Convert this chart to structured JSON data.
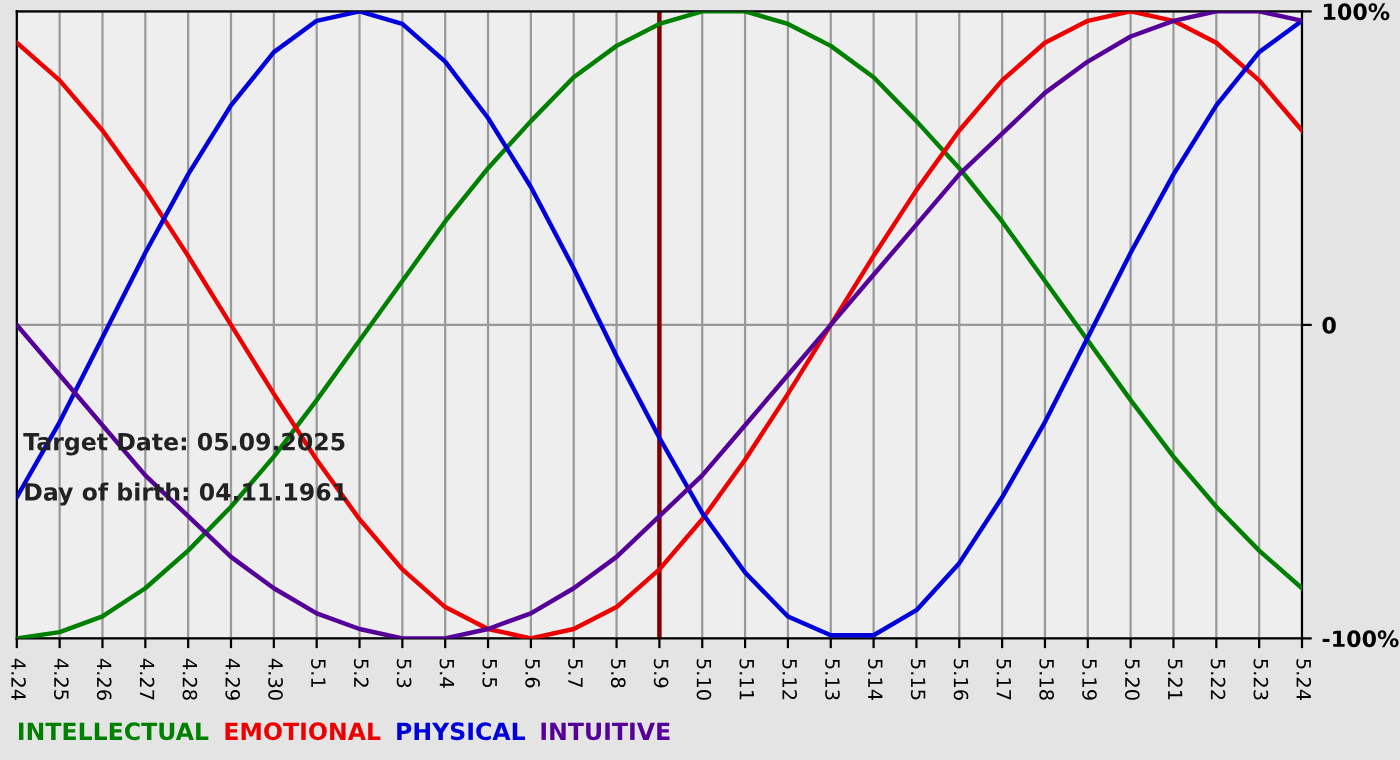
{
  "chart_data": {
    "type": "line",
    "categories": [
      "4.24",
      "4.25",
      "4.26",
      "4.27",
      "4.28",
      "4.29",
      "4.30",
      "5.1",
      "5.2",
      "5.3",
      "5.4",
      "5.5",
      "5.6",
      "5.7",
      "5.8",
      "5.9",
      "5.10",
      "5.11",
      "5.12",
      "5.13",
      "5.14",
      "5.15",
      "5.16",
      "5.17",
      "5.18",
      "5.19",
      "5.20",
      "5.21",
      "5.22",
      "5.23",
      "5.24"
    ],
    "series": [
      {
        "name": "INTELLECTUAL",
        "color": "#008000",
        "values": [
          -100,
          -98,
          -93,
          -84,
          -72,
          -58,
          -42,
          -24,
          -5,
          14,
          33,
          50,
          65,
          79,
          89,
          96,
          100,
          100,
          96,
          89,
          79,
          65,
          50,
          33,
          14,
          -5,
          -24,
          -42,
          -58,
          -72,
          -84
        ]
      },
      {
        "name": "EMOTIONAL",
        "color": "#ee0000",
        "values": [
          90,
          78,
          62,
          43,
          22,
          0,
          -22,
          -43,
          -62,
          -78,
          -90,
          -97,
          -100,
          -97,
          -90,
          -78,
          -62,
          -43,
          -22,
          0,
          22,
          43,
          62,
          78,
          90,
          97,
          100,
          97,
          90,
          78,
          62
        ]
      },
      {
        "name": "PHYSICAL",
        "color": "#0000dd",
        "values": [
          -55,
          -31,
          -4,
          23,
          48,
          70,
          87,
          97,
          100,
          96,
          84,
          66,
          44,
          18,
          -10,
          -36,
          -60,
          -79,
          -93,
          -99,
          -99,
          -91,
          -76,
          -55,
          -31,
          -4,
          23,
          48,
          70,
          87,
          97
        ]
      },
      {
        "name": "INTUITIVE",
        "color": "#550099",
        "values": [
          0,
          -16,
          -32,
          -48,
          -61,
          -74,
          -84,
          -92,
          -97,
          -100,
          -100,
          -97,
          -92,
          -84,
          -74,
          -61,
          -48,
          -32,
          -16,
          0,
          16,
          32,
          48,
          61,
          74,
          84,
          92,
          97,
          100,
          100,
          97
        ]
      }
    ],
    "ylim": [
      -100,
      100
    ],
    "yticks": [
      {
        "value": -100,
        "label": "-100%"
      },
      0,
      {
        "value": 100,
        "label": "100%"
      }
    ],
    "ref_lines": [
      {
        "axis": "x",
        "value": "5.9",
        "color": "#800000"
      }
    ],
    "annotations": [
      "Target Date: 05.09.2025",
      "Day of birth: 04.11.1961"
    ],
    "grid": true,
    "legend": "bottom",
    "marker": "none",
    "line_style": "solid"
  }
}
